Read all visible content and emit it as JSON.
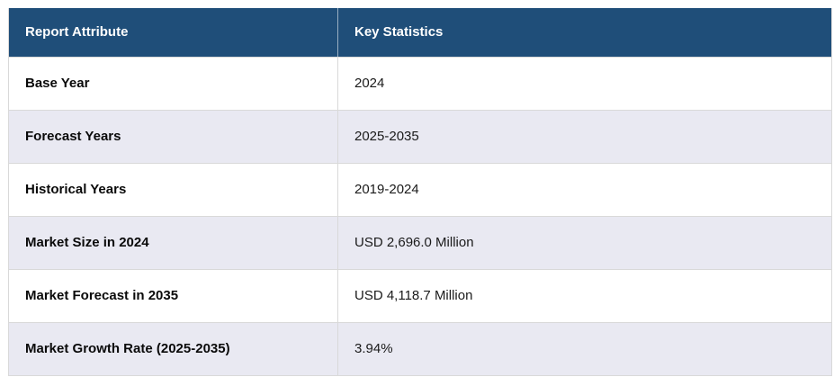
{
  "table": {
    "columns": {
      "attribute": "Report Attribute",
      "statistics": "Key Statistics"
    },
    "rows": [
      {
        "attribute": "Base Year",
        "value": "2024"
      },
      {
        "attribute": "Forecast Years",
        "value": "2025-2035"
      },
      {
        "attribute": "Historical Years",
        "value": "2019-2024"
      },
      {
        "attribute": "Market Size in 2024",
        "value": "USD 2,696.0 Million"
      },
      {
        "attribute": "Market Forecast in 2035",
        "value": "USD 4,118.7 Million"
      },
      {
        "attribute": "Market Growth Rate (2025-2035)",
        "value": "3.94%"
      }
    ],
    "colors": {
      "header_bg": "#1f4e79",
      "header_text": "#ffffff",
      "row_bg": "#ffffff",
      "row_alt_bg": "#e9e9f2",
      "border": "#d9d9d9"
    }
  }
}
